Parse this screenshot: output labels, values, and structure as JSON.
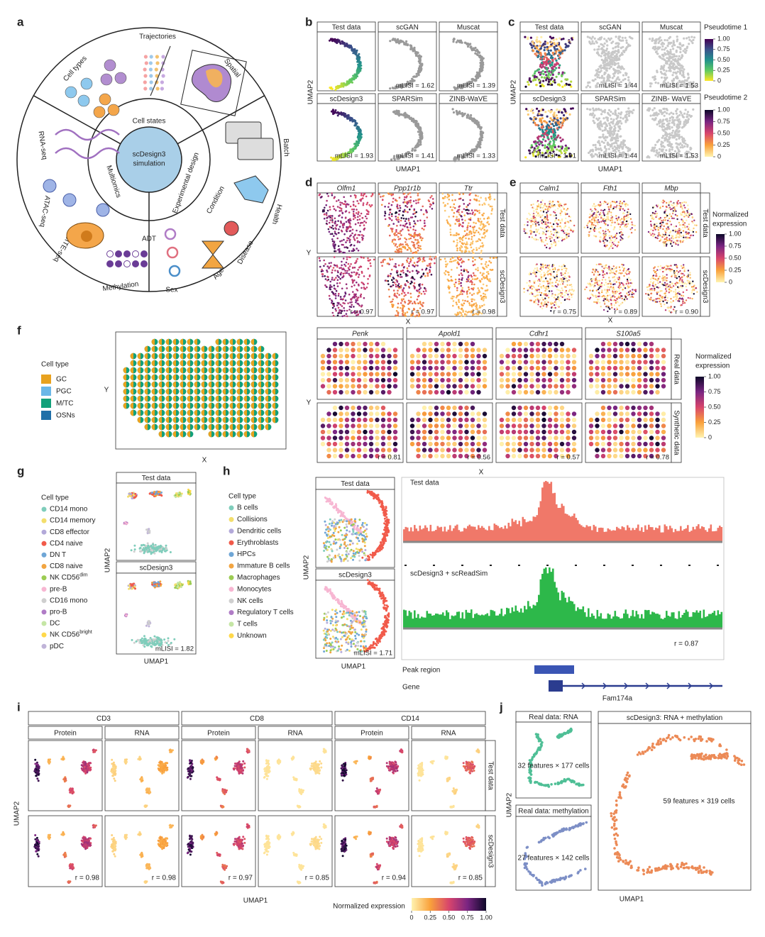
{
  "panels": {
    "a": {
      "label": "a",
      "center": [
        "scDesign3",
        "simulation"
      ],
      "rings": [
        "Cell states",
        "Multiomics",
        "Experimental design"
      ],
      "items": [
        "Cell types",
        "Trajectories",
        "Spatial",
        "RNA-seq",
        "ATAC-seq",
        "CITE-seq",
        "ADT",
        "Methylation",
        "Batch",
        "Condition",
        "Health",
        "Disease",
        "Age",
        "Sex"
      ]
    },
    "b": {
      "label": "b",
      "x_label": "UMAP1",
      "y_label": "UMAP2",
      "plots": [
        {
          "title": "Test data"
        },
        {
          "title": "scGAN",
          "metric": "mLISI = 1.62"
        },
        {
          "title": "Muscat",
          "metric": "mLISI = 1.39"
        },
        {
          "title": "scDesign3",
          "metric": "mLISI = 1.93"
        },
        {
          "title": "SPARSim",
          "metric": "mLISI = 1.41"
        },
        {
          "title": "ZINB-WaVE",
          "metric": "mLISI = 1.33"
        }
      ]
    },
    "c": {
      "label": "c",
      "x_label": "UMAP1",
      "y_label": "UMAP2",
      "plots": [
        {
          "title": "Test data"
        },
        {
          "title": "scGAN",
          "metric": "mLISI = 1.44"
        },
        {
          "title": "Muscat",
          "metric": "mLISI = 1.53"
        },
        {
          "title": "scDesign3",
          "metric": "mLISI = 1.91"
        },
        {
          "title": "SPARSim",
          "metric": "mLISI = 1.44"
        },
        {
          "title": "ZINB- WaVE",
          "metric": "mLISI = 1.53"
        }
      ],
      "colorbars": [
        {
          "title": "Pseudotime 1",
          "ticks": [
            "1.00",
            "0.75",
            "0.50",
            "0.25",
            "0"
          ]
        },
        {
          "title": "Pseudotime 2",
          "ticks": [
            "1.00",
            "0.75",
            "0.50",
            "0.25",
            "0"
          ]
        }
      ]
    },
    "d": {
      "label": "d",
      "x_label": "X",
      "y_label": "Y",
      "genes": [
        "Olfm1",
        "Ppp1r1b",
        "Ttr"
      ],
      "rows": [
        "Test data",
        "scDesign3"
      ],
      "metrics": [
        "r = 0.97",
        "r = 0.97",
        "r = 0.98"
      ]
    },
    "e": {
      "label": "e",
      "x_label": "X",
      "genes": [
        "Calm1",
        "Fth1",
        "Mbp"
      ],
      "rows": [
        "Test data",
        "scDesign3"
      ],
      "metrics": [
        "r = 0.75",
        "r = 0.89",
        "r = 0.90"
      ],
      "colorbar": {
        "title": [
          "Normalized",
          "expression"
        ],
        "ticks": [
          "1.00",
          "0.75",
          "0.50",
          "0.25",
          "0"
        ]
      }
    },
    "f": {
      "label": "f",
      "legend_title": "Cell type",
      "legend": [
        {
          "name": "GC",
          "color": "#e8a21f"
        },
        {
          "name": "PGC",
          "color": "#6ab7e8"
        },
        {
          "name": "M/TC",
          "color": "#12a07a"
        },
        {
          "name": "OSNs",
          "color": "#1f6fa8"
        }
      ],
      "x_label": "X",
      "y_label": "Y",
      "spatial": {
        "x_label": "X",
        "y_label": "Y",
        "genes": [
          "Penk",
          "Apold1",
          "Cdhr1",
          "S100a5"
        ],
        "rows": [
          "Real data",
          "Synthetic data"
        ],
        "metrics": [
          "r = 0.81",
          "r = 0.56",
          "r = 0.57",
          "r = 0.78"
        ],
        "colorbar": {
          "title": [
            "Normalized",
            "expression"
          ],
          "ticks": [
            "1.00",
            "0.75",
            "0.50",
            "0.25",
            "0"
          ]
        }
      }
    },
    "g": {
      "label": "g",
      "legend_title": "Cell type",
      "legend": [
        {
          "name": "CD14 mono",
          "color": "#7fcdbb"
        },
        {
          "name": "CD14 memory",
          "color": "#f3de6c"
        },
        {
          "name": "CD8 effector",
          "color": "#b3a9d9"
        },
        {
          "name": "CD4 naive",
          "color": "#f15a4a"
        },
        {
          "name": "DN T",
          "color": "#6fa6d6"
        },
        {
          "name": "CD8 naive",
          "color": "#f2a541"
        },
        {
          "name": "NK CD56",
          "sup": "dim",
          "color": "#9ccc53"
        },
        {
          "name": "pre-B",
          "color": "#f7b6d2"
        },
        {
          "name": "CD16 mono",
          "color": "#cfcfcf"
        },
        {
          "name": "pro-B",
          "color": "#b07cc6"
        },
        {
          "name": "DC",
          "color": "#c5e6a5"
        },
        {
          "name": "NK CD56",
          "sup": "bright",
          "color": "#ffd84a"
        },
        {
          "name": "pDC",
          "color": "#c0b4d8"
        }
      ],
      "plots": [
        {
          "title": "Test data"
        },
        {
          "title": "scDesign3",
          "metric": "mLISI = 1.82"
        }
      ],
      "x_label": "UMAP1",
      "y_label": "UMAP2"
    },
    "h": {
      "label": "h",
      "legend_title": "Cell type",
      "legend": [
        {
          "name": "B cells",
          "color": "#7fcdbb"
        },
        {
          "name": "Collisions",
          "color": "#f3de6c"
        },
        {
          "name": "Dendritic cells",
          "color": "#b3a9d9"
        },
        {
          "name": "Erythroblasts",
          "color": "#f15a4a"
        },
        {
          "name": "HPCs",
          "color": "#6fa6d6"
        },
        {
          "name": "Immature B cells",
          "color": "#f2a541"
        },
        {
          "name": "Macrophages",
          "color": "#9ccc53"
        },
        {
          "name": "Monocytes",
          "color": "#f7b6d2"
        },
        {
          "name": "NK cells",
          "color": "#cfcfcf"
        },
        {
          "name": "Regulatory T cells",
          "color": "#b07cc6"
        },
        {
          "name": "T cells",
          "color": "#c5e6a5"
        },
        {
          "name": "Unknown",
          "color": "#ffd84a"
        }
      ],
      "plots": [
        {
          "title": "Test data"
        },
        {
          "title": "scDesign3",
          "metric": "mLISI = 1.71"
        }
      ],
      "x_label": "UMAP1",
      "y_label": "UMAP2",
      "track": {
        "rows": [
          "Test data",
          "scDesign3 + scReadSim"
        ],
        "metric": "r = 0.87",
        "peak_label": "Peak region",
        "gene_label": "Gene",
        "gene_name": "Fam174a"
      }
    },
    "i": {
      "label": "i",
      "markers": [
        "CD3",
        "CD8",
        "CD14"
      ],
      "modalities": [
        "Protein",
        "RNA"
      ],
      "rows": [
        "Test data",
        "scDesign3"
      ],
      "metrics": [
        [
          "r = 0.98",
          "r = 0.98"
        ],
        [
          "r = 0.97",
          "r = 0.85"
        ],
        [
          "r = 0.94",
          "r = 0.85"
        ]
      ],
      "x_label": "UMAP1",
      "y_label": "UMAP2",
      "colorbar": {
        "title": "Normalized expression",
        "ticks": [
          "0",
          "0.25",
          "0.50",
          "0.75",
          "1.00"
        ]
      }
    },
    "j": {
      "label": "j",
      "plots": [
        {
          "title": "Real data: RNA",
          "note": "32 features × 177 cells"
        },
        {
          "title": "Real data: methylation",
          "note": "27 features × 142 cells"
        },
        {
          "title": "scDesign3: RNA + methylation",
          "note": "59 features × 319 cells"
        }
      ],
      "x_label": "UMAP1",
      "y_label": "UMAP2"
    }
  }
}
